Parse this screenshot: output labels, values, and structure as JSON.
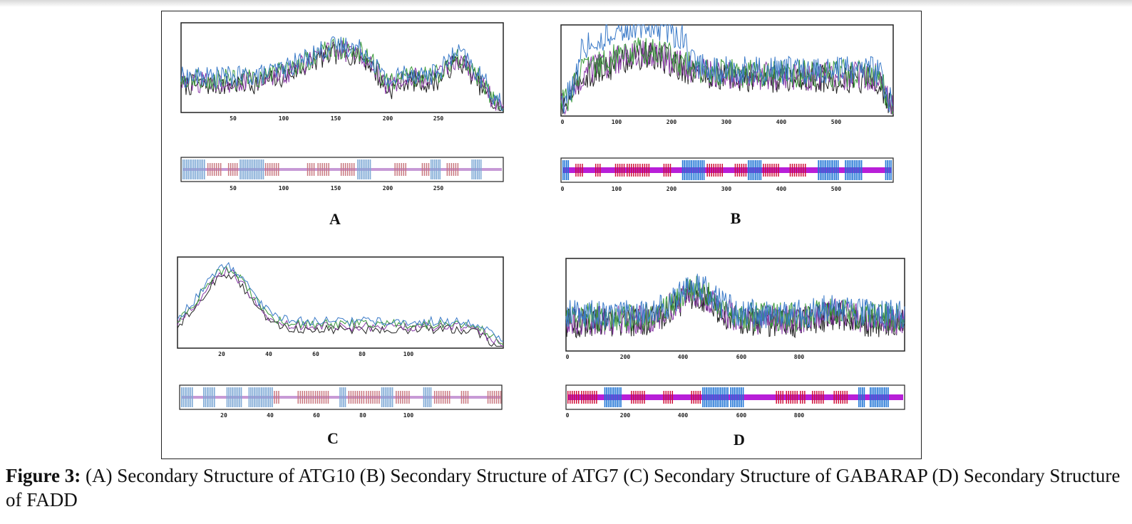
{
  "figure": {
    "caption_label": "Figure 3:",
    "caption_text": "(A) Secondary Structure of ATG10 (B) Secondary Structure of ATG7 (C) Secondary Structure of GABARAP (D) Secondary Structure of FADD"
  },
  "panels": [
    {
      "label": "A",
      "ticks": [
        "50",
        "100",
        "150",
        "200",
        "250"
      ],
      "bar_ticks": [
        "50",
        "100",
        "150",
        "200",
        "250"
      ]
    },
    {
      "label": "B",
      "ticks": [
        "0",
        "100",
        "200",
        "300",
        "400",
        "500"
      ],
      "bar_ticks": [
        "0",
        "100",
        "200",
        "300",
        "400",
        "500"
      ]
    },
    {
      "label": "C",
      "ticks": [
        "20",
        "40",
        "60",
        "80",
        "100"
      ],
      "bar_ticks": [
        "20",
        "40",
        "60",
        "80",
        "100"
      ]
    },
    {
      "label": "D",
      "ticks": [
        "0",
        "200",
        "400",
        "600",
        "800"
      ],
      "bar_ticks": [
        "0",
        "200",
        "400",
        "600",
        "800"
      ]
    }
  ],
  "colors": {
    "helix": "#4a8fd0",
    "strand": "#c8283c",
    "coil": "#b03fc8",
    "line_series": [
      "#222222",
      "#8a3aa8",
      "#3a9a3a",
      "#3a7ac8"
    ]
  }
}
